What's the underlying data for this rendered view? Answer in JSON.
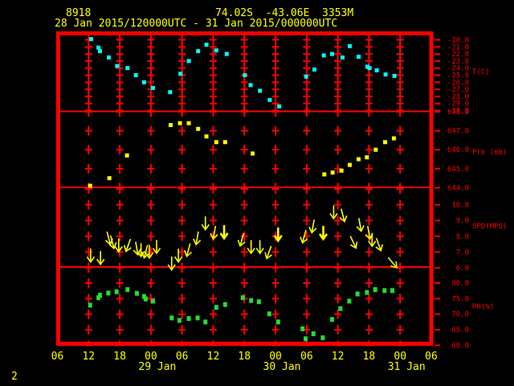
{
  "header": {
    "station_id": "8918",
    "station_location": "74.02S  -43.06E  3353M",
    "date_range": "28 Jan 2015/120000UTC - 31 Jan 2015/000000UTC"
  },
  "page_indicator": "2",
  "colors": {
    "background": "#000000",
    "grid": "#ff0000",
    "axis_text": "#ff0000",
    "time_text": "#ffff00",
    "temperature": "#00ffff",
    "pressure": "#ffff00",
    "wind": "#ffff00",
    "humidity": "#22dd33"
  },
  "chart_data": {
    "type": "scatter",
    "title": "AWS meteogram: temperature, pressure, wind speed, relative humidity vs time",
    "x_axis": {
      "tick_hours": [
        0,
        6,
        12,
        18,
        24,
        30,
        36,
        42,
        48,
        54,
        60,
        66,
        72
      ],
      "tick_labels": [
        "06",
        "12",
        "18",
        "00",
        "06",
        "12",
        "18",
        "00",
        "06",
        "12",
        "18",
        "00",
        "06"
      ],
      "day_labels": [
        {
          "label": "29 Jan",
          "hour": 18
        },
        {
          "label": "30 Jan",
          "hour": 42
        },
        {
          "label": "31 Jan",
          "hour": 66
        }
      ],
      "range_hours": [
        0,
        72
      ]
    },
    "panels": [
      {
        "id": "temperature",
        "unit_label": "T(C)",
        "tick_values": [
          -20,
          -21,
          -22,
          -23,
          -24,
          -25,
          -26,
          -27,
          -28,
          -29,
          -30
        ],
        "tick_labels": [
          "-20.0",
          "-21.0",
          "-22.0",
          "-23.0",
          "-24.0",
          "-25.0",
          "-26.0",
          "-27.0",
          "-28.0",
          "-29.0",
          "-30.0"
        ],
        "grid_values": [
          -20,
          -21,
          -22,
          -23,
          -24,
          -25,
          -26,
          -27,
          -28,
          -29,
          -30
        ],
        "value_range": [
          -30,
          -20
        ],
        "points": [
          [
            6.5,
            -19.9
          ],
          [
            7.9,
            -21.1
          ],
          [
            8.2,
            -21.6
          ],
          [
            9.9,
            -22.5
          ],
          [
            11.5,
            -23.7
          ],
          [
            13.5,
            -24.0
          ],
          [
            15.1,
            -25.0
          ],
          [
            16.7,
            -26.0
          ],
          [
            18.4,
            -26.8
          ],
          [
            21.7,
            -27.4
          ],
          [
            23.7,
            -24.8
          ],
          [
            25.3,
            -23.0
          ],
          [
            27.1,
            -21.6
          ],
          [
            28.7,
            -20.7
          ],
          [
            30.6,
            -21.5
          ],
          [
            32.6,
            -22.0
          ],
          [
            36.1,
            -25.0
          ],
          [
            37.2,
            -26.4
          ],
          [
            39.0,
            -27.2
          ],
          [
            40.9,
            -28.5
          ],
          [
            42.7,
            -29.4
          ],
          [
            47.9,
            -25.2
          ],
          [
            49.5,
            -24.2
          ],
          [
            51.3,
            -22.2
          ],
          [
            52.9,
            -22.0
          ],
          [
            54.9,
            -22.5
          ],
          [
            56.3,
            -20.9
          ],
          [
            58.0,
            -22.4
          ],
          [
            59.7,
            -23.8
          ],
          [
            60.1,
            -24.0
          ],
          [
            61.5,
            -24.3
          ],
          [
            63.2,
            -24.9
          ],
          [
            64.9,
            -25.1
          ]
        ]
      },
      {
        "id": "pressure",
        "unit_label": "Pre (mb)",
        "tick_values": [
          648,
          647,
          646,
          645,
          644
        ],
        "tick_labels": [
          "648.0",
          "647.0",
          "646.0",
          "645.0",
          "644.0"
        ],
        "grid_values": [
          648,
          647,
          646,
          645,
          644
        ],
        "value_range": [
          644,
          648
        ],
        "points": [
          [
            6.3,
            644.1
          ],
          [
            10.0,
            644.5
          ],
          [
            13.4,
            645.7
          ],
          [
            21.8,
            647.3
          ],
          [
            23.6,
            647.4
          ],
          [
            25.3,
            647.4
          ],
          [
            27.1,
            647.1
          ],
          [
            28.7,
            646.7
          ],
          [
            30.6,
            646.4
          ],
          [
            32.3,
            646.4
          ],
          [
            37.6,
            645.8
          ],
          [
            51.4,
            644.7
          ],
          [
            53.0,
            644.8
          ],
          [
            54.7,
            644.9
          ],
          [
            56.3,
            645.2
          ],
          [
            58.0,
            645.5
          ],
          [
            59.6,
            645.6
          ],
          [
            61.3,
            646.0
          ],
          [
            63.1,
            646.4
          ],
          [
            64.8,
            646.6
          ]
        ]
      },
      {
        "id": "wind_speed",
        "unit_label": "SPD(MPS)",
        "tick_values": [
          10,
          9,
          8,
          7,
          6
        ],
        "tick_labels": [
          "10.0",
          "9.0",
          "8.0",
          "7.0",
          "6.0"
        ],
        "grid_values": [
          11,
          10,
          9,
          8,
          7,
          6
        ],
        "value_range": [
          6,
          11
        ],
        "arrows": [
          [
            6.4,
            6.75,
            0,
            0
          ],
          [
            8.3,
            6.6,
            0,
            0
          ],
          [
            9.9,
            7.85,
            -15,
            0
          ],
          [
            10.6,
            7.6,
            -15,
            0
          ],
          [
            11.8,
            7.4,
            0,
            0
          ],
          [
            13.6,
            7.4,
            20,
            0
          ],
          [
            15.3,
            7.2,
            -10,
            0
          ],
          [
            16.1,
            7.1,
            0,
            0
          ],
          [
            17.0,
            7.0,
            15,
            0
          ],
          [
            17.7,
            7.0,
            0,
            0
          ],
          [
            19.1,
            7.3,
            0,
            0
          ],
          [
            22.0,
            6.25,
            0,
            0
          ],
          [
            23.3,
            6.75,
            0,
            0
          ],
          [
            25.2,
            7.1,
            15,
            0
          ],
          [
            26.9,
            7.85,
            10,
            0
          ],
          [
            28.5,
            8.8,
            0,
            0
          ],
          [
            30.2,
            8.2,
            10,
            0
          ],
          [
            32.1,
            8.25,
            0,
            1
          ],
          [
            35.5,
            7.75,
            15,
            0
          ],
          [
            37.3,
            7.3,
            0,
            0
          ],
          [
            39.0,
            7.3,
            0,
            0
          ],
          [
            40.7,
            6.95,
            20,
            0
          ],
          [
            42.5,
            8.1,
            0,
            1
          ],
          [
            47.5,
            7.95,
            15,
            0
          ],
          [
            49.2,
            8.6,
            10,
            0
          ],
          [
            51.2,
            8.2,
            0,
            1
          ],
          [
            53.2,
            9.5,
            0,
            0
          ],
          [
            55.0,
            9.3,
            -15,
            0
          ],
          [
            57.0,
            7.6,
            -25,
            0
          ],
          [
            58.3,
            8.7,
            -10,
            0
          ],
          [
            60.0,
            8.2,
            -10,
            0
          ],
          [
            60.6,
            7.75,
            0,
            0
          ],
          [
            61.9,
            7.45,
            -20,
            0
          ],
          [
            64.6,
            6.3,
            -40,
            0
          ]
        ]
      },
      {
        "id": "relative_humidity",
        "unit_label": "RH(%)",
        "tick_values": [
          80,
          75,
          70,
          65,
          60
        ],
        "tick_labels": [
          "80.0",
          "75.0",
          "70.0",
          "65.0",
          "60.0"
        ],
        "grid_values": [
          85,
          80,
          75,
          70,
          65,
          60
        ],
        "value_range": [
          60,
          85
        ],
        "points": [
          [
            6.3,
            72.9
          ],
          [
            7.9,
            75.3
          ],
          [
            8.2,
            76.1
          ],
          [
            9.8,
            76.8
          ],
          [
            11.4,
            77.2
          ],
          [
            13.5,
            77.9
          ],
          [
            15.3,
            76.7
          ],
          [
            16.7,
            75.7
          ],
          [
            17.0,
            74.9
          ],
          [
            18.4,
            74.2
          ],
          [
            22.0,
            68.8
          ],
          [
            23.5,
            68.0
          ],
          [
            25.3,
            68.6
          ],
          [
            27.0,
            68.8
          ],
          [
            28.5,
            67.5
          ],
          [
            30.6,
            72.2
          ],
          [
            32.3,
            73.1
          ],
          [
            35.7,
            75.3
          ],
          [
            37.3,
            74.4
          ],
          [
            38.8,
            74.0
          ],
          [
            40.8,
            70.1
          ],
          [
            42.5,
            67.5
          ],
          [
            47.2,
            65.3
          ],
          [
            47.8,
            62.1
          ],
          [
            49.3,
            63.7
          ],
          [
            51.1,
            62.4
          ],
          [
            52.9,
            68.3
          ],
          [
            54.5,
            71.8
          ],
          [
            56.2,
            74.2
          ],
          [
            57.8,
            76.5
          ],
          [
            59.6,
            77.0
          ],
          [
            61.2,
            77.9
          ],
          [
            63.0,
            77.6
          ],
          [
            64.5,
            77.6
          ]
        ]
      }
    ]
  }
}
